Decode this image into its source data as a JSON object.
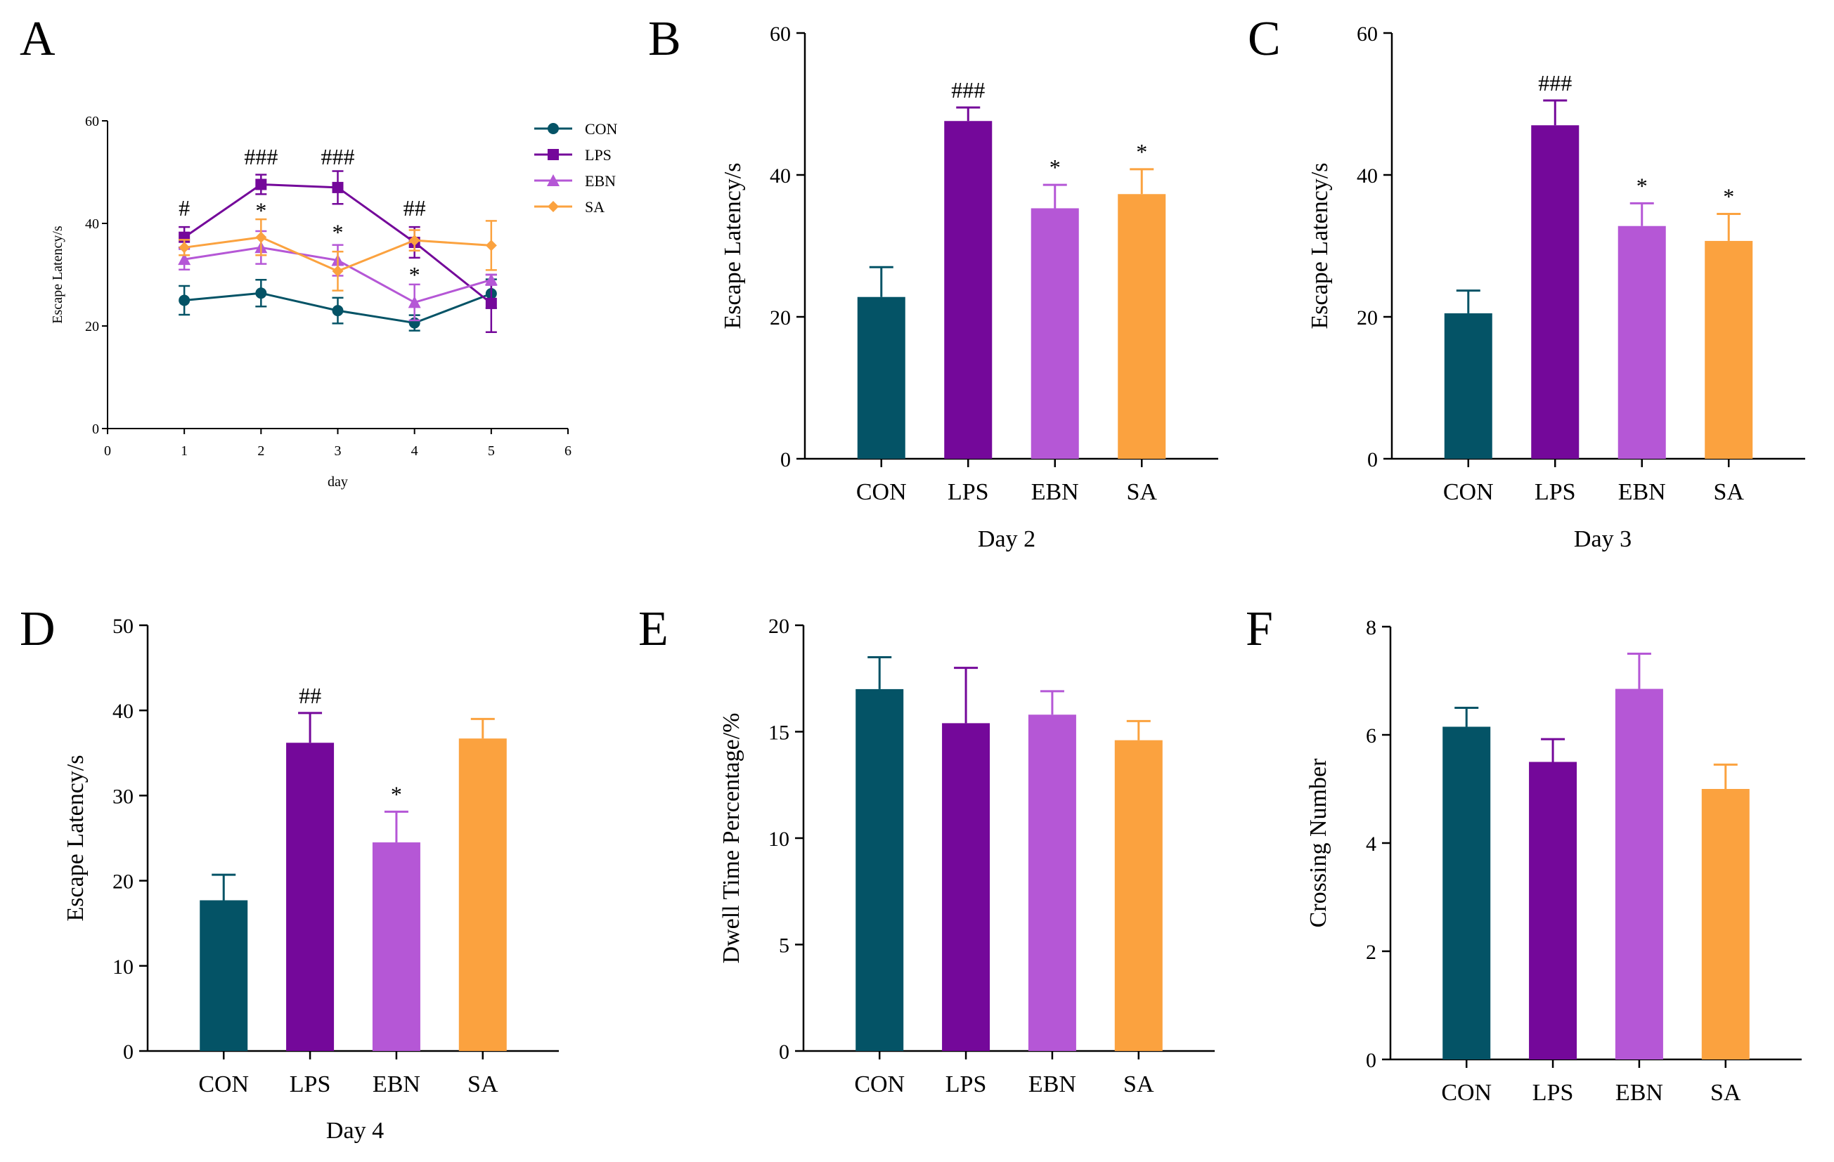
{
  "colors": {
    "CON": "#045366",
    "LPS": "#74089a",
    "EBN": "#b557d6",
    "SA": "#fba23f",
    "axis": "#000000"
  },
  "chart_data": [
    {
      "id": "A",
      "type": "line",
      "panel_label": "A",
      "xlabel": "day",
      "ylabel": "Escape Latency/s",
      "xlim": [
        0,
        6
      ],
      "ylim": [
        0,
        60
      ],
      "xticks": [
        "0",
        "1",
        "2",
        "3",
        "4",
        "5",
        "6"
      ],
      "yticks": [
        "0",
        "20",
        "40",
        "60"
      ],
      "legend_position": "top-right",
      "x": [
        1,
        2,
        3,
        4,
        5
      ],
      "series": [
        {
          "name": "CON",
          "color_key": "CON",
          "marker": "circle",
          "values": [
            25.0,
            26.4,
            23.0,
            20.6,
            26.3
          ],
          "errors": [
            2.8,
            2.6,
            2.5,
            1.5,
            2.8
          ]
        },
        {
          "name": "LPS",
          "color_key": "LPS",
          "marker": "square",
          "values": [
            37.3,
            47.6,
            47.0,
            36.3,
            24.4
          ],
          "errors": [
            2.0,
            1.9,
            3.2,
            3.0,
            5.6
          ]
        },
        {
          "name": "EBN",
          "color_key": "EBN",
          "marker": "triangle",
          "values": [
            33.0,
            35.3,
            32.8,
            24.6,
            29.0
          ],
          "errors": [
            2.0,
            3.2,
            3.0,
            3.5,
            1.0
          ]
        },
        {
          "name": "SA",
          "color_key": "SA",
          "marker": "diamond",
          "values": [
            35.3,
            37.3,
            30.7,
            36.7,
            35.7
          ],
          "errors": [
            1.5,
            3.5,
            3.8,
            2.0,
            4.8
          ]
        }
      ],
      "annotations": [
        {
          "text": "#",
          "x": 1,
          "y_at": 41.5
        },
        {
          "text": "###",
          "x": 2,
          "y_at": 51.5
        },
        {
          "text": "*",
          "x": 2,
          "y_at": 41.0
        },
        {
          "text": "###",
          "x": 3,
          "y_at": 51.5
        },
        {
          "text": "*",
          "x": 3,
          "y_at": 36.8
        },
        {
          "text": "##",
          "x": 4,
          "y_at": 41.5
        },
        {
          "text": "*",
          "x": 4,
          "y_at": 28.5
        }
      ]
    },
    {
      "id": "B",
      "type": "bar",
      "panel_label": "B",
      "title": "Day 2",
      "xlabel": "Day 2",
      "ylabel": "Escape Latency/s",
      "ylim": [
        0,
        60
      ],
      "yticks": [
        "0",
        "20",
        "40",
        "60"
      ],
      "categories": [
        "CON",
        "LPS",
        "EBN",
        "SA"
      ],
      "values": [
        22.8,
        47.6,
        35.3,
        37.3
      ],
      "errors": [
        4.2,
        1.9,
        3.3,
        3.5
      ],
      "labels": [
        "",
        "###",
        "*",
        "*"
      ]
    },
    {
      "id": "C",
      "type": "bar",
      "panel_label": "C",
      "title": "Day 3",
      "xlabel": "Day 3",
      "ylabel": "Escape Latency/s",
      "ylim": [
        0,
        60
      ],
      "yticks": [
        "0",
        "20",
        "40",
        "60"
      ],
      "categories": [
        "CON",
        "LPS",
        "EBN",
        "SA"
      ],
      "values": [
        20.5,
        47.0,
        32.8,
        30.7
      ],
      "errors": [
        3.2,
        3.5,
        3.2,
        3.8
      ],
      "labels": [
        "",
        "###",
        "*",
        "*"
      ]
    },
    {
      "id": "D",
      "type": "bar",
      "panel_label": "D",
      "title": "Day 4",
      "xlabel": "Day 4",
      "ylabel": "Escape Latency/s",
      "ylim": [
        0,
        50
      ],
      "yticks": [
        "0",
        "10",
        "20",
        "30",
        "40",
        "50"
      ],
      "categories": [
        "CON",
        "LPS",
        "EBN",
        "SA"
      ],
      "values": [
        17.7,
        36.2,
        24.5,
        36.7
      ],
      "errors": [
        3.0,
        3.5,
        3.6,
        2.3
      ],
      "labels": [
        "",
        "##",
        "*",
        ""
      ]
    },
    {
      "id": "E",
      "type": "bar",
      "panel_label": "E",
      "title": "",
      "xlabel": "",
      "ylabel": "Dwell Time Percentage/%",
      "ylim": [
        0,
        20
      ],
      "yticks": [
        "0",
        "5",
        "10",
        "15",
        "20"
      ],
      "categories": [
        "CON",
        "LPS",
        "EBN",
        "SA"
      ],
      "values": [
        17.0,
        15.4,
        15.8,
        14.6
      ],
      "errors": [
        1.5,
        2.6,
        1.1,
        0.9
      ],
      "labels": [
        "",
        "",
        "",
        ""
      ]
    },
    {
      "id": "F",
      "type": "bar",
      "panel_label": "F",
      "title": "",
      "xlabel": "",
      "ylabel": "Crossing Number",
      "ylim": [
        0,
        8
      ],
      "yticks": [
        "0",
        "2",
        "4",
        "6",
        "8"
      ],
      "categories": [
        "CON",
        "LPS",
        "EBN",
        "SA"
      ],
      "values": [
        6.15,
        5.5,
        6.85,
        5.0
      ],
      "errors": [
        0.35,
        0.42,
        0.65,
        0.45
      ],
      "labels": [
        "",
        "",
        "",
        ""
      ]
    }
  ]
}
